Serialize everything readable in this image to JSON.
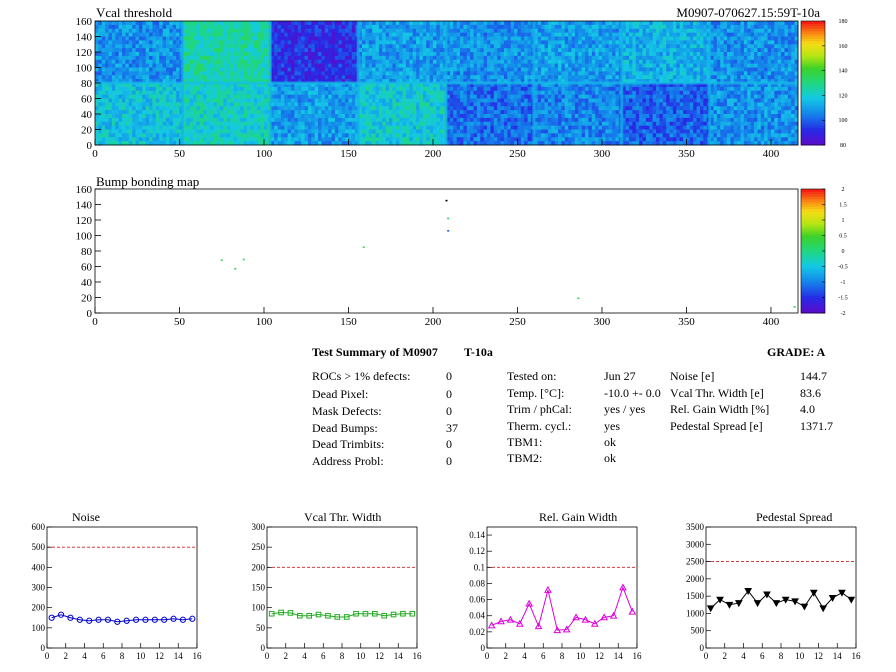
{
  "chart_data": [
    {
      "type": "heatmap",
      "title": "Vcal threshold",
      "corner_label": "M0907-070627.15:59T-10a",
      "xlim": [
        0,
        416
      ],
      "ylim": [
        0,
        160
      ],
      "xticks": [
        "0",
        "50",
        "100",
        "150",
        "200",
        "250",
        "300",
        "350",
        "400"
      ],
      "yticks": [
        "0",
        "20",
        "40",
        "60",
        "80",
        "100",
        "120",
        "140",
        "160"
      ],
      "color_scale": {
        "min": 80,
        "max": 180,
        "ticks": [
          "80",
          "100",
          "120",
          "140",
          "160",
          "180"
        ]
      },
      "roc_grid": {
        "cols": 8,
        "rows": 2,
        "col_width": 52,
        "row_height": 80
      },
      "roc_mean_values": [
        [
          108,
          126,
          92,
          110,
          108,
          110,
          114,
          108
        ],
        [
          118,
          122,
          110,
          120,
          102,
          106,
          100,
          108
        ]
      ]
    },
    {
      "type": "heatmap",
      "title": "Bump bonding map",
      "xlim": [
        0,
        416
      ],
      "ylim": [
        0,
        160
      ],
      "xticks": [
        "0",
        "50",
        "100",
        "150",
        "200",
        "250",
        "300",
        "350",
        "400"
      ],
      "yticks": [
        "0",
        "20",
        "40",
        "60",
        "80",
        "100",
        "120",
        "140",
        "160"
      ],
      "color_scale": {
        "min": -2,
        "max": 2,
        "ticks": [
          "-2",
          "-1.5",
          "-1",
          "-0.5",
          "0",
          "0.5",
          "1",
          "1.5",
          "2"
        ]
      },
      "points": [
        {
          "x": 75,
          "y": 68,
          "v": 0.2
        },
        {
          "x": 83,
          "y": 57,
          "v": 0.2
        },
        {
          "x": 88,
          "y": 69,
          "v": 0.1
        },
        {
          "x": 159,
          "y": 85,
          "v": 0.2
        },
        {
          "x": 208,
          "y": 145,
          "v": -2
        },
        {
          "x": 209,
          "y": 122,
          "v": 0.1
        },
        {
          "x": 209,
          "y": 106,
          "v": -1.2
        },
        {
          "x": 286,
          "y": 19,
          "v": 0.2
        },
        {
          "x": 414,
          "y": 8,
          "v": 0.3
        }
      ]
    },
    {
      "type": "line",
      "title": "Noise",
      "xlim": [
        0,
        16
      ],
      "ylim": [
        0,
        600
      ],
      "xticks": [
        "0",
        "2",
        "4",
        "6",
        "8",
        "10",
        "12",
        "14",
        "16"
      ],
      "yticks": [
        "0",
        "100",
        "200",
        "300",
        "400",
        "500",
        "600"
      ],
      "threshold": 500,
      "marker": "circle",
      "color": "#0000cc",
      "x": [
        0.5,
        1.5,
        2.5,
        3.5,
        4.5,
        5.5,
        6.5,
        7.5,
        8.5,
        9.5,
        10.5,
        11.5,
        12.5,
        13.5,
        14.5,
        15.5
      ],
      "values": [
        150,
        165,
        150,
        140,
        135,
        140,
        140,
        130,
        135,
        140,
        140,
        140,
        140,
        145,
        140,
        145
      ]
    },
    {
      "type": "line",
      "title": "Vcal Thr. Width",
      "xlim": [
        0,
        16
      ],
      "ylim": [
        0,
        300
      ],
      "xticks": [
        "0",
        "2",
        "4",
        "6",
        "8",
        "10",
        "12",
        "14",
        "16"
      ],
      "yticks": [
        "0",
        "50",
        "100",
        "150",
        "200",
        "250",
        "300"
      ],
      "threshold": 200,
      "marker": "square",
      "color": "#22aa22",
      "x": [
        0.5,
        1.5,
        2.5,
        3.5,
        4.5,
        5.5,
        6.5,
        7.5,
        8.5,
        9.5,
        10.5,
        11.5,
        12.5,
        13.5,
        14.5,
        15.5
      ],
      "values": [
        85,
        88,
        87,
        80,
        80,
        83,
        80,
        77,
        77,
        85,
        85,
        85,
        80,
        83,
        85,
        85
      ]
    },
    {
      "type": "line",
      "title": "Rel. Gain Width",
      "xlim": [
        0,
        16
      ],
      "ylim": [
        0,
        0.15
      ],
      "xticks": [
        "0",
        "2",
        "4",
        "6",
        "8",
        "10",
        "12",
        "14",
        "16"
      ],
      "yticks": [
        "0",
        "0.02",
        "0.04",
        "0.06",
        "0.08",
        "0.1",
        "0.12",
        "0.14"
      ],
      "threshold": 0.1,
      "marker": "triangle",
      "color": "#dd00dd",
      "x": [
        0.5,
        1.5,
        2.5,
        3.5,
        4.5,
        5.5,
        6.5,
        7.5,
        8.5,
        9.5,
        10.5,
        11.5,
        12.5,
        13.5,
        14.5,
        15.5
      ],
      "values": [
        0.028,
        0.033,
        0.035,
        0.03,
        0.055,
        0.027,
        0.072,
        0.022,
        0.023,
        0.038,
        0.035,
        0.03,
        0.038,
        0.04,
        0.075,
        0.045
      ]
    },
    {
      "type": "line",
      "title": "Pedestal Spread",
      "xlim": [
        0,
        16
      ],
      "ylim": [
        0,
        3500
      ],
      "xticks": [
        "0",
        "2",
        "4",
        "6",
        "8",
        "10",
        "12",
        "14",
        "16"
      ],
      "yticks": [
        "0",
        "500",
        "1000",
        "1500",
        "2000",
        "2500",
        "3000",
        "3500"
      ],
      "threshold": 2500,
      "marker": "triangle-down",
      "color": "#000000",
      "x": [
        0.5,
        1.5,
        2.5,
        3.5,
        4.5,
        5.5,
        6.5,
        7.5,
        8.5,
        9.5,
        10.5,
        11.5,
        12.5,
        13.5,
        14.5,
        15.5
      ],
      "values": [
        1150,
        1400,
        1250,
        1300,
        1650,
        1300,
        1550,
        1300,
        1400,
        1350,
        1200,
        1600,
        1150,
        1450,
        1600,
        1400
      ]
    }
  ],
  "summary": {
    "title": "Test Summary of M0907",
    "temp_tag": "T-10a",
    "grade_label": "GRADE:  A",
    "col1": [
      {
        "label": "ROCs > 1% defects:",
        "value": "0"
      },
      {
        "label": "Dead Pixel:",
        "value": "0"
      },
      {
        "label": "Mask Defects:",
        "value": "0"
      },
      {
        "label": "Dead Bumps:",
        "value": "37"
      },
      {
        "label": "Dead Trimbits:",
        "value": "0"
      },
      {
        "label": "Address Probl:",
        "value": "0"
      }
    ],
    "col2": [
      {
        "label": "Tested on:",
        "value": "Jun 27"
      },
      {
        "label": "Temp. [°C]:",
        "value": "-10.0 +- 0.0"
      },
      {
        "label": "Trim / phCal:",
        "value": "yes / yes"
      },
      {
        "label": "Therm. cycl.:",
        "value": "yes"
      },
      {
        "label": "TBM1:",
        "value": "ok"
      },
      {
        "label": "TBM2:",
        "value": "ok"
      }
    ],
    "col3": [
      {
        "label": "Noise [e]",
        "value": "144.7"
      },
      {
        "label": "Vcal Thr. Width [e]",
        "value": "83.6"
      },
      {
        "label": "Rel. Gain Width [%]",
        "value": "4.0"
      },
      {
        "label": "Pedestal Spread [e]",
        "value": "1371.7"
      }
    ]
  }
}
